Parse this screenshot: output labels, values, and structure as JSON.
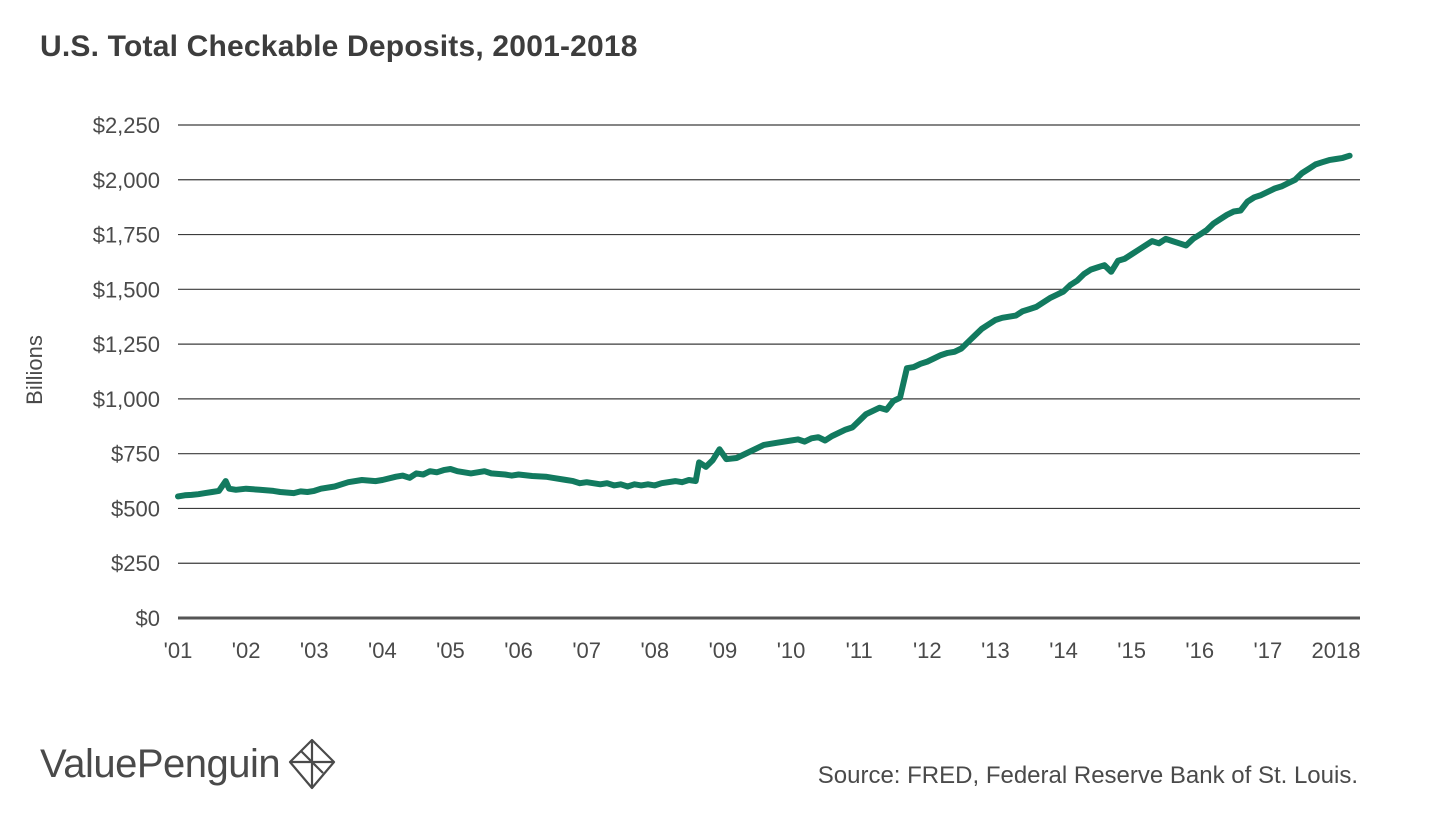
{
  "chart_data": {
    "type": "line",
    "title": "U.S. Total Checkable Deposits, 2001-2018",
    "xlabel": "",
    "ylabel": "Billions",
    "ylim": [
      0,
      2250
    ],
    "xlim": [
      2001.0,
      2018.0
    ],
    "y_ticks": [
      0,
      250,
      500,
      750,
      1000,
      1250,
      1500,
      1750,
      2000,
      2250
    ],
    "y_tick_labels": [
      "$0",
      "$250",
      "$500",
      "$750",
      "$1,000",
      "$1,250",
      "$1,500",
      "$1,750",
      "$2,000",
      "$2,250"
    ],
    "x_ticks": [
      2001,
      2002,
      2003,
      2004,
      2005,
      2006,
      2007,
      2008,
      2009,
      2010,
      2011,
      2012,
      2013,
      2014,
      2015,
      2016,
      2017,
      2018
    ],
    "x_tick_labels": [
      "'01",
      "'02",
      "'03",
      "'04",
      "'05",
      "'06",
      "'07",
      "'08",
      "'09",
      "'10",
      "'11",
      "'12",
      "'13",
      "'14",
      "'15",
      "'16",
      "'17",
      "2018"
    ],
    "grid": true,
    "color": "#127a5f",
    "series": [
      {
        "name": "Total Checkable Deposits",
        "x": [
          2001.0,
          2001.1,
          2001.2,
          2001.3,
          2001.4,
          2001.5,
          2001.6,
          2001.7,
          2001.75,
          2001.85,
          2002.0,
          2002.2,
          2002.4,
          2002.5,
          2002.7,
          2002.8,
          2002.9,
          2003.0,
          2003.1,
          2003.3,
          2003.5,
          2003.7,
          2003.9,
          2004.0,
          2004.2,
          2004.3,
          2004.4,
          2004.5,
          2004.6,
          2004.7,
          2004.8,
          2004.9,
          2005.0,
          2005.1,
          2005.2,
          2005.3,
          2005.5,
          2005.6,
          2005.8,
          2005.9,
          2006.0,
          2006.2,
          2006.4,
          2006.5,
          2006.7,
          2006.8,
          2006.9,
          2007.0,
          2007.2,
          2007.3,
          2007.4,
          2007.5,
          2007.6,
          2007.7,
          2007.8,
          2007.9,
          2008.0,
          2008.1,
          2008.3,
          2008.4,
          2008.5,
          2008.6,
          2008.65,
          2008.75,
          2008.85,
          2008.95,
          2009.05,
          2009.2,
          2009.4,
          2009.6,
          2009.8,
          2010.0,
          2010.1,
          2010.2,
          2010.3,
          2010.4,
          2010.5,
          2010.6,
          2010.7,
          2010.8,
          2010.9,
          2011.0,
          2011.1,
          2011.2,
          2011.3,
          2011.4,
          2011.5,
          2011.6,
          2011.7,
          2011.8,
          2011.9,
          2012.0,
          2012.1,
          2012.2,
          2012.3,
          2012.4,
          2012.5,
          2012.6,
          2012.7,
          2012.8,
          2012.9,
          2013.0,
          2013.1,
          2013.3,
          2013.4,
          2013.5,
          2013.6,
          2013.7,
          2013.8,
          2013.9,
          2014.0,
          2014.1,
          2014.2,
          2014.3,
          2014.4,
          2014.5,
          2014.6,
          2014.7,
          2014.8,
          2014.9,
          2015.0,
          2015.1,
          2015.2,
          2015.3,
          2015.4,
          2015.5,
          2015.6,
          2015.7,
          2015.8,
          2015.9,
          2016.0,
          2016.1,
          2016.2,
          2016.3,
          2016.4,
          2016.5,
          2016.6,
          2016.7,
          2016.8,
          2016.9,
          2017.0,
          2017.1,
          2017.2,
          2017.3,
          2017.4,
          2017.5,
          2017.6,
          2017.7,
          2017.8,
          2017.9,
          2018.0,
          2018.1,
          2018.2
        ],
        "values": [
          555,
          560,
          562,
          565,
          570,
          575,
          580,
          625,
          590,
          585,
          590,
          585,
          580,
          575,
          570,
          578,
          575,
          580,
          590,
          600,
          620,
          630,
          625,
          630,
          645,
          650,
          640,
          660,
          655,
          670,
          665,
          675,
          680,
          670,
          665,
          660,
          670,
          660,
          655,
          650,
          655,
          648,
          645,
          640,
          630,
          625,
          615,
          620,
          610,
          615,
          605,
          610,
          600,
          610,
          605,
          610,
          605,
          615,
          625,
          620,
          630,
          625,
          710,
          690,
          720,
          770,
          725,
          730,
          760,
          790,
          800,
          810,
          815,
          805,
          820,
          825,
          810,
          830,
          845,
          860,
          870,
          900,
          930,
          945,
          960,
          950,
          990,
          1005,
          1140,
          1145,
          1160,
          1170,
          1185,
          1200,
          1210,
          1215,
          1230,
          1260,
          1290,
          1320,
          1340,
          1360,
          1370,
          1380,
          1400,
          1410,
          1420,
          1440,
          1460,
          1475,
          1490,
          1520,
          1540,
          1570,
          1590,
          1600,
          1610,
          1580,
          1630,
          1640,
          1660,
          1680,
          1700,
          1720,
          1710,
          1730,
          1720,
          1710,
          1700,
          1730,
          1750,
          1770,
          1800,
          1820,
          1840,
          1855,
          1860,
          1900,
          1920,
          1930,
          1945,
          1960,
          1970,
          1985,
          2000,
          2030,
          2050,
          2070,
          2080,
          2090,
          2095,
          2100,
          2110
        ]
      }
    ]
  },
  "branding": {
    "logo_text": "ValuePenguin",
    "logo_icon": "penguin-diamond-icon"
  },
  "footer": {
    "source": "Source: FRED, Federal Reserve Bank of St. Louis."
  }
}
